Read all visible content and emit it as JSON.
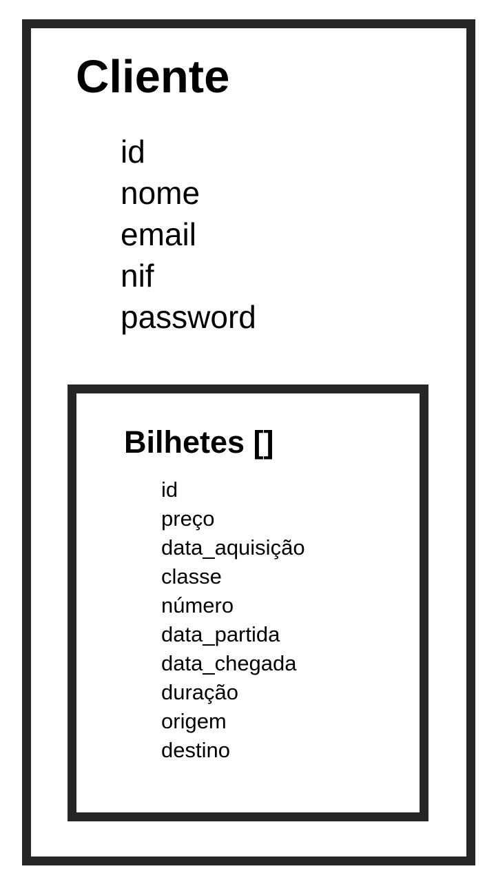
{
  "outer_entity": {
    "title": "Cliente",
    "fields": [
      "id",
      "nome",
      "email",
      "nif",
      "password"
    ]
  },
  "inner_entity": {
    "title": "Bilhetes []",
    "fields": [
      "id",
      "preço",
      "data_aquisição",
      "classe",
      "número",
      "data_partida",
      "data_chegada",
      "duração",
      "origem",
      "destino"
    ]
  }
}
